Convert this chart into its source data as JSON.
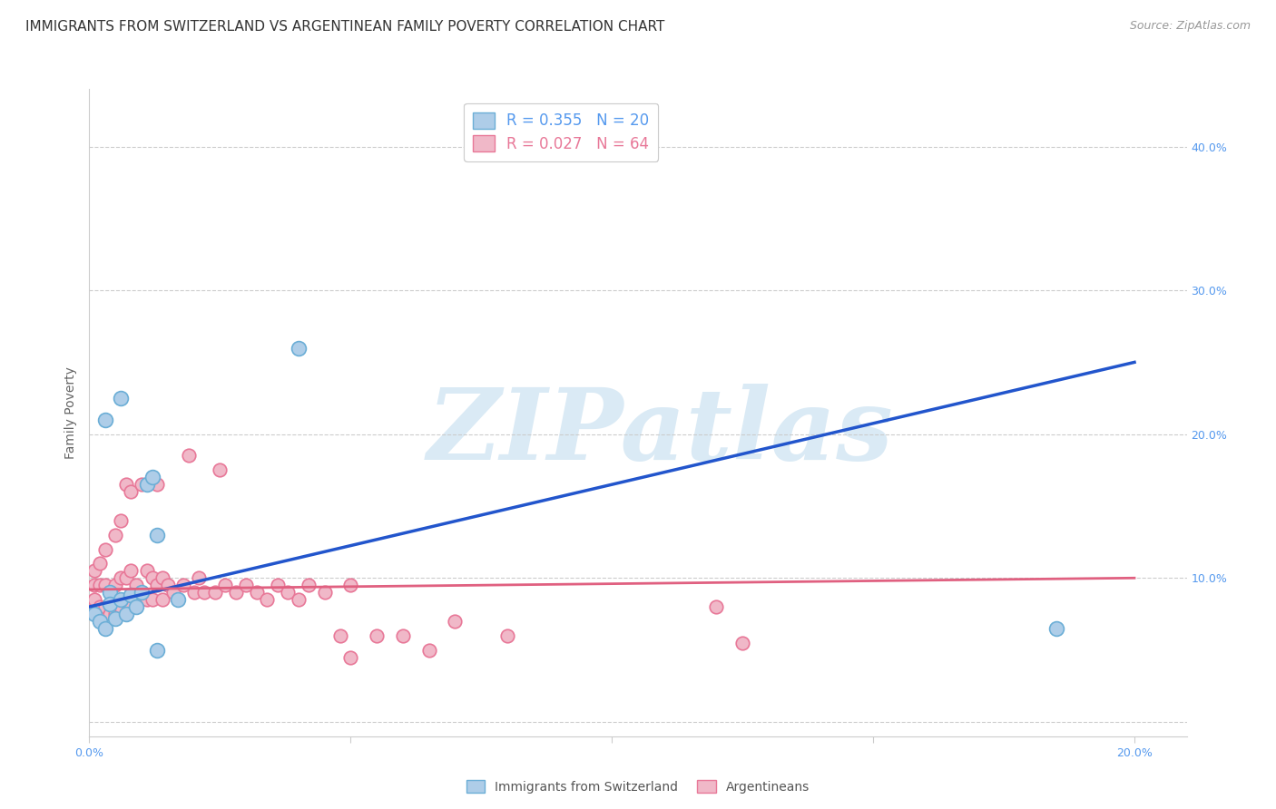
{
  "title": "IMMIGRANTS FROM SWITZERLAND VS ARGENTINEAN FAMILY POVERTY CORRELATION CHART",
  "source": "Source: ZipAtlas.com",
  "ylabel": "Family Poverty",
  "xlim": [
    0.0,
    0.21
  ],
  "ylim": [
    -0.01,
    0.44
  ],
  "x_ticks": [
    0.0,
    0.05,
    0.1,
    0.15,
    0.2
  ],
  "x_tick_labels": [
    "0.0%",
    "",
    "",
    "",
    "20.0%"
  ],
  "y_ticks": [
    0.0,
    0.1,
    0.2,
    0.3,
    0.4
  ],
  "y_tick_labels": [
    "",
    "10.0%",
    "20.0%",
    "30.0%",
    "40.0%"
  ],
  "swiss_x": [
    0.001,
    0.002,
    0.003,
    0.004,
    0.004,
    0.005,
    0.006,
    0.007,
    0.008,
    0.009,
    0.01,
    0.011,
    0.012,
    0.013,
    0.017,
    0.003,
    0.006,
    0.04,
    0.185,
    0.013
  ],
  "swiss_y": [
    0.075,
    0.07,
    0.065,
    0.09,
    0.082,
    0.072,
    0.085,
    0.075,
    0.088,
    0.08,
    0.09,
    0.165,
    0.17,
    0.13,
    0.085,
    0.21,
    0.225,
    0.26,
    0.065,
    0.05
  ],
  "arg_x": [
    0.001,
    0.001,
    0.001,
    0.002,
    0.002,
    0.002,
    0.003,
    0.003,
    0.003,
    0.004,
    0.004,
    0.005,
    0.005,
    0.005,
    0.006,
    0.006,
    0.006,
    0.007,
    0.007,
    0.008,
    0.008,
    0.008,
    0.009,
    0.009,
    0.01,
    0.01,
    0.011,
    0.011,
    0.012,
    0.012,
    0.013,
    0.013,
    0.014,
    0.014,
    0.015,
    0.016,
    0.017,
    0.018,
    0.019,
    0.02,
    0.021,
    0.022,
    0.024,
    0.025,
    0.026,
    0.028,
    0.03,
    0.032,
    0.034,
    0.036,
    0.038,
    0.04,
    0.042,
    0.045,
    0.048,
    0.05,
    0.055,
    0.06,
    0.065,
    0.07,
    0.08,
    0.12,
    0.125,
    0.05
  ],
  "arg_y": [
    0.105,
    0.095,
    0.085,
    0.11,
    0.095,
    0.08,
    0.12,
    0.095,
    0.08,
    0.09,
    0.075,
    0.13,
    0.095,
    0.075,
    0.14,
    0.1,
    0.08,
    0.165,
    0.1,
    0.16,
    0.105,
    0.08,
    0.095,
    0.085,
    0.165,
    0.09,
    0.105,
    0.085,
    0.1,
    0.085,
    0.165,
    0.095,
    0.1,
    0.085,
    0.095,
    0.09,
    0.085,
    0.095,
    0.185,
    0.09,
    0.1,
    0.09,
    0.09,
    0.175,
    0.095,
    0.09,
    0.095,
    0.09,
    0.085,
    0.095,
    0.09,
    0.085,
    0.095,
    0.09,
    0.06,
    0.095,
    0.06,
    0.06,
    0.05,
    0.07,
    0.06,
    0.08,
    0.055,
    0.045
  ],
  "swiss_line_x": [
    0.0,
    0.2
  ],
  "swiss_line_y": [
    0.08,
    0.25
  ],
  "arg_line_x": [
    0.0,
    0.2
  ],
  "arg_line_y": [
    0.092,
    0.1
  ],
  "swiss_color": "#6baed6",
  "swiss_color_light": "#aecde8",
  "arg_color": "#e87898",
  "arg_color_light": "#f0b8c8",
  "watermark_text": "ZIPatlas",
  "watermark_color": "#daeaf5",
  "background_color": "#ffffff",
  "grid_color": "#cccccc",
  "title_fontsize": 11,
  "axis_label_fontsize": 10,
  "tick_fontsize": 9,
  "tick_color_blue": "#5599ee",
  "legend_label1": "R = 0.355   N = 20",
  "legend_label2": "R = 0.027   N = 64",
  "legend_text_color1": "#5599ee",
  "legend_text_color2": "#e87898",
  "bottom_label1": "Immigrants from Switzerland",
  "bottom_label2": "Argentineans"
}
